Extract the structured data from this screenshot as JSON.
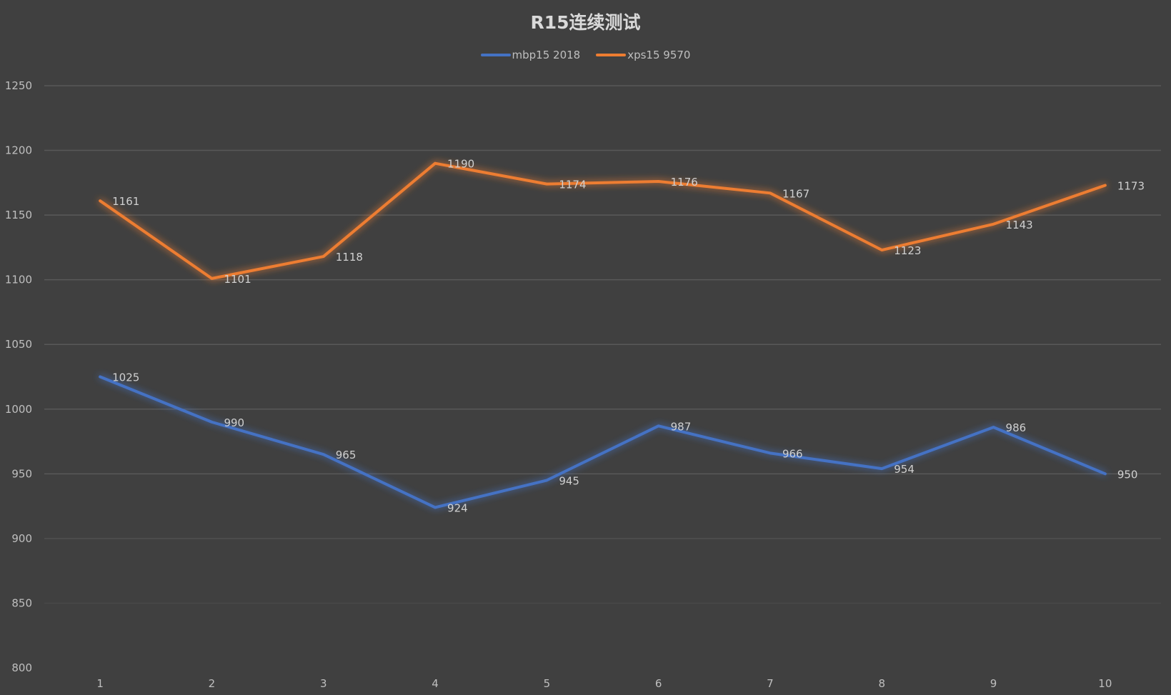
{
  "title": "R15连续测试",
  "legend": [
    {
      "name": "mbp15 2018",
      "color": "#4472c4"
    },
    {
      "name": "xps15 9570",
      "color": "#ed7d31"
    }
  ],
  "chart_data": {
    "type": "line",
    "title": "R15连续测试",
    "xlabel": "",
    "ylabel": "",
    "categories": [
      "1",
      "2",
      "3",
      "4",
      "5",
      "6",
      "7",
      "8",
      "9",
      "10"
    ],
    "series": [
      {
        "name": "mbp15 2018",
        "color": "#4472c4",
        "values": [
          1025,
          990,
          965,
          924,
          945,
          987,
          966,
          954,
          986,
          950
        ]
      },
      {
        "name": "xps15 9570",
        "color": "#ed7d31",
        "values": [
          1161,
          1101,
          1118,
          1190,
          1174,
          1176,
          1167,
          1123,
          1143,
          1173
        ]
      }
    ],
    "ylim": [
      800,
      1250
    ],
    "yticks": [
      800,
      850,
      900,
      950,
      1000,
      1050,
      1100,
      1150,
      1200,
      1250
    ],
    "grid": true,
    "legend_position": "top",
    "data_labels": true
  }
}
